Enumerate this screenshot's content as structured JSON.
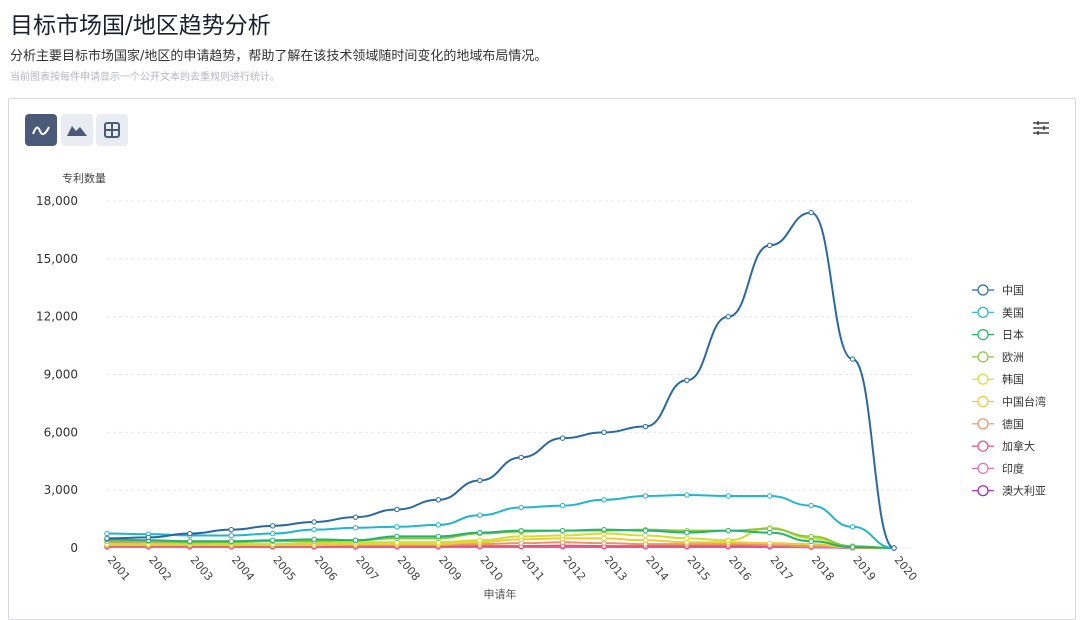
{
  "header": {
    "title": "目标市场国/地区趋势分析",
    "subtitle": "分析主要目标市场国家/地区的申请趋势，帮助了解在该技术领域随时间变化的地域布局情况。",
    "note": "当前图表按每件申请显示一个公开文本的去重规则进行统计。"
  },
  "toolbar": {
    "buttons": [
      "line-chart-icon",
      "area-chart-icon",
      "table-icon"
    ],
    "active": "line-chart-icon",
    "settings": "settings-sliders-icon"
  },
  "chart_data": {
    "type": "line",
    "ylabel": "专利数量",
    "xlabel": "申请年",
    "ylim": [
      0,
      18000
    ],
    "yticks": [
      "0",
      "3,000",
      "6,000",
      "9,000",
      "12,000",
      "15,000",
      "18,000"
    ],
    "x": [
      "2001",
      "2002",
      "2003",
      "2004",
      "2005",
      "2006",
      "2007",
      "2008",
      "2009",
      "2010",
      "2011",
      "2012",
      "2013",
      "2014",
      "2015",
      "2016",
      "2017",
      "2018",
      "2019",
      "2020"
    ],
    "legend_position": "right",
    "series": [
      {
        "name": "中国",
        "color": "#2a6aa0",
        "values": [
          500,
          550,
          750,
          950,
          1150,
          1350,
          1600,
          2000,
          2500,
          3500,
          4700,
          5700,
          6000,
          6300,
          8700,
          12000,
          15700,
          17400,
          9800,
          0
        ]
      },
      {
        "name": "美国",
        "color": "#22b5cc",
        "values": [
          750,
          720,
          650,
          650,
          750,
          950,
          1050,
          1100,
          1200,
          1700,
          2100,
          2200,
          2500,
          2700,
          2750,
          2700,
          2700,
          2200,
          1100,
          0
        ]
      },
      {
        "name": "日本",
        "color": "#24b36b",
        "values": [
          450,
          400,
          350,
          350,
          400,
          450,
          400,
          600,
          600,
          800,
          900,
          900,
          950,
          900,
          800,
          900,
          800,
          350,
          50,
          0
        ]
      },
      {
        "name": "欧洲",
        "color": "#8cc63f",
        "values": [
          350,
          350,
          300,
          300,
          350,
          350,
          400,
          500,
          500,
          750,
          850,
          900,
          900,
          950,
          900,
          900,
          1000,
          600,
          100,
          0
        ]
      },
      {
        "name": "韩国",
        "color": "#cfe02b",
        "values": [
          200,
          200,
          200,
          200,
          200,
          250,
          300,
          300,
          300,
          400,
          600,
          650,
          750,
          650,
          500,
          400,
          1050,
          500,
          50,
          0
        ]
      },
      {
        "name": "中国台湾",
        "color": "#e8cc3c",
        "values": [
          150,
          150,
          150,
          150,
          150,
          150,
          200,
          200,
          200,
          300,
          450,
          500,
          500,
          400,
          300,
          300,
          250,
          200,
          30,
          0
        ]
      },
      {
        "name": "德国",
        "color": "#e8946a",
        "values": [
          300,
          250,
          250,
          150,
          150,
          150,
          150,
          150,
          150,
          200,
          250,
          300,
          250,
          200,
          200,
          200,
          150,
          100,
          20,
          0
        ]
      },
      {
        "name": "加拿大",
        "color": "#e8507c",
        "values": [
          100,
          100,
          100,
          80,
          80,
          80,
          80,
          80,
          80,
          100,
          100,
          120,
          100,
          100,
          100,
          100,
          100,
          80,
          10,
          0
        ]
      },
      {
        "name": "印度",
        "color": "#e070b8",
        "values": [
          50,
          50,
          50,
          50,
          50,
          50,
          50,
          50,
          50,
          60,
          60,
          70,
          70,
          70,
          70,
          70,
          70,
          50,
          10,
          0
        ]
      },
      {
        "name": "澳大利亚",
        "color": "#a020c0",
        "values": [
          60,
          60,
          60,
          60,
          60,
          60,
          60,
          60,
          60,
          60,
          60,
          60,
          60,
          60,
          60,
          60,
          60,
          40,
          10,
          0
        ]
      }
    ]
  }
}
